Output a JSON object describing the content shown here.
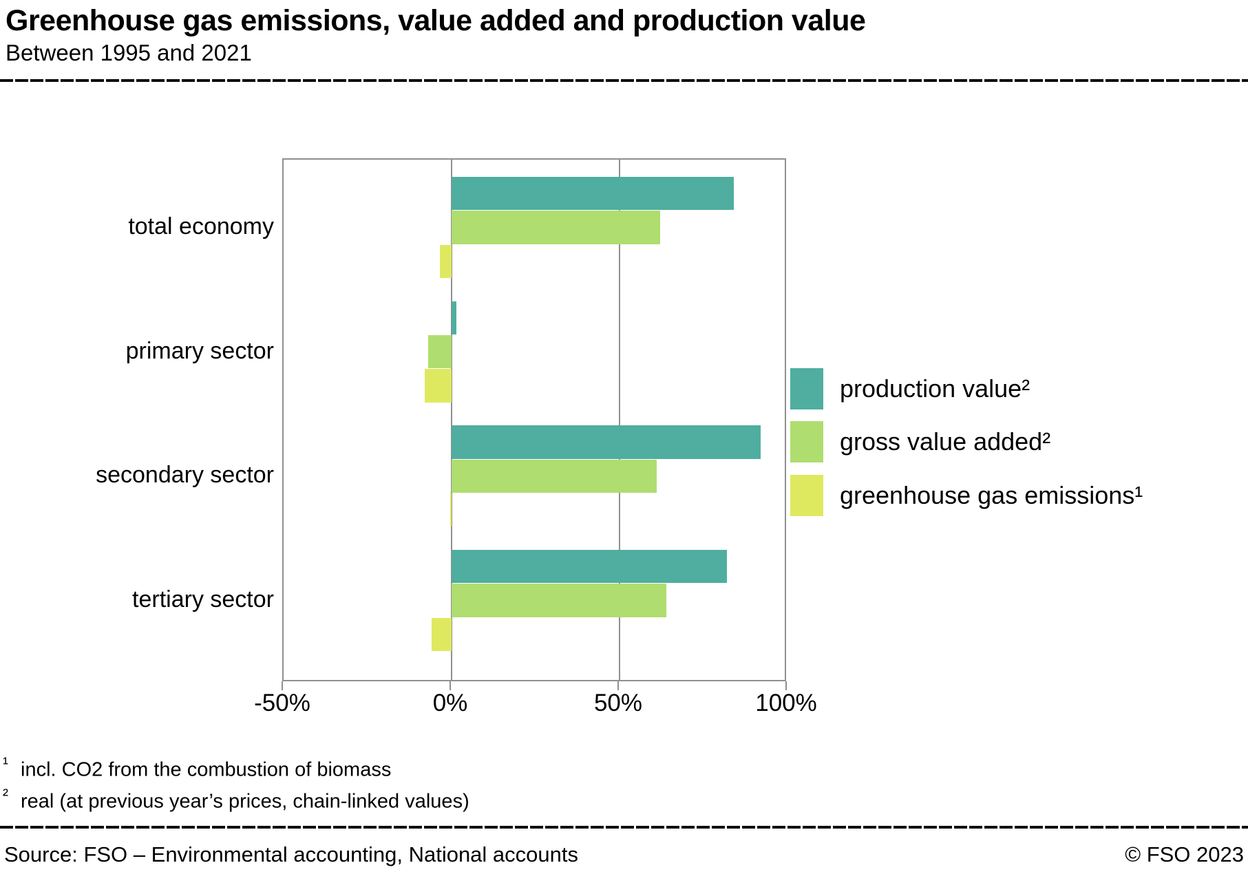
{
  "header": {
    "title": "Greenhouse gas emissions, value added and production value",
    "subtitle": "Between 1995 and 2021"
  },
  "chart_data": {
    "type": "bar",
    "orientation": "horizontal",
    "categories": [
      "total economy",
      "primary sector",
      "secondary sector",
      "tertiary sector"
    ],
    "series": [
      {
        "name": "production value²",
        "color": "#4fae9f",
        "values": [
          84,
          1.5,
          92,
          82
        ]
      },
      {
        "name": "gross value added²",
        "color": "#afdd6f",
        "values": [
          62,
          -7,
          61,
          64
        ]
      },
      {
        "name": "greenhouse gas emissions¹",
        "color": "#dfe95f",
        "values": [
          -3.5,
          -8,
          -0.5,
          -6
        ]
      }
    ],
    "unit": "%",
    "xlim": [
      -50,
      100
    ],
    "xticks": [
      -50,
      0,
      50,
      100
    ],
    "xtick_labels": [
      "-50%",
      "0%",
      "50%",
      "100%"
    ],
    "grid": true,
    "legend_position": "right"
  },
  "footnotes": [
    {
      "marker": "¹",
      "text": "incl. CO2 from the combustion of biomass"
    },
    {
      "marker": "²",
      "text": "real (at previous year’s prices, chain-linked values)"
    }
  ],
  "footer": {
    "source": "Source: FSO – Environmental accounting, National accounts",
    "copyright": "© FSO 2023"
  }
}
